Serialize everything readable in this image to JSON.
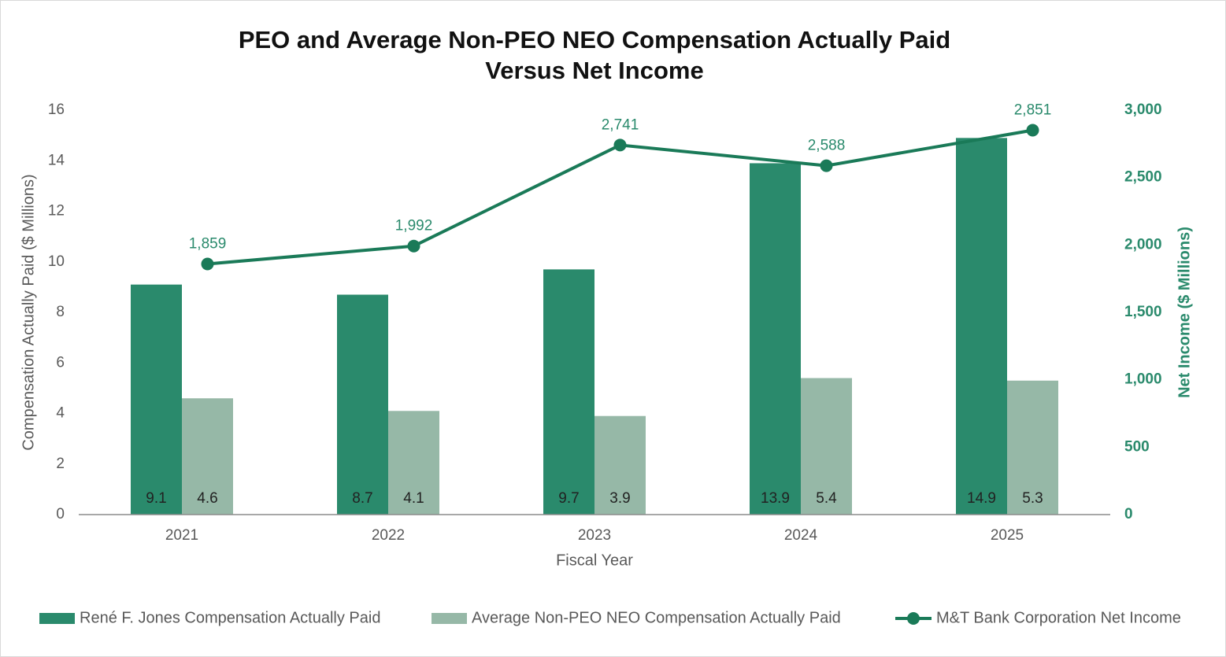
{
  "chart_data": {
    "type": "bar_line",
    "title": [
      "PEO and Average Non-PEO NEO Compensation Actually Paid",
      "Versus Net Income"
    ],
    "x_label": "Fiscal Year",
    "y_label": "Compensation Actually Paid ($ Millions)",
    "y2_label": "Net Income ($ Millions)",
    "categories": [
      "2021",
      "2022",
      "2023",
      "2024",
      "2025"
    ],
    "ylim": [
      0,
      16
    ],
    "yticks": [
      0,
      2,
      4,
      6,
      8,
      10,
      12,
      14,
      16
    ],
    "y2lim": [
      0,
      3000
    ],
    "y2ticks": [
      0,
      500,
      {
        "value": 1000,
        "label": "1,000"
      },
      {
        "value": 1500,
        "label": "1,500"
      },
      {
        "value": 2000,
        "label": "2,000"
      },
      {
        "value": 2500,
        "label": "2,500"
      },
      {
        "value": 3000,
        "label": "3,000"
      }
    ],
    "series": [
      {
        "name": "René F. Jones Compensation Actually Paid",
        "type": "bar",
        "color": "#2a8a6c",
        "values": [
          9.1,
          8.7,
          9.7,
          13.9,
          14.9
        ]
      },
      {
        "name": "Average Non-PEO NEO Compensation Actually Paid",
        "type": "bar",
        "color": "#96b8a7",
        "values": [
          4.6,
          4.1,
          3.9,
          5.4,
          5.3
        ]
      },
      {
        "name": "M&T Bank Corporation Net Income",
        "type": "line",
        "axis": "y2",
        "color": "#1a7a58",
        "values": [
          1859,
          1992,
          2741,
          2588,
          2851
        ],
        "value_labels": [
          "1,859",
          "1,992",
          "2,741",
          "2,588",
          "2,851"
        ]
      }
    ],
    "legend": "bottom"
  }
}
